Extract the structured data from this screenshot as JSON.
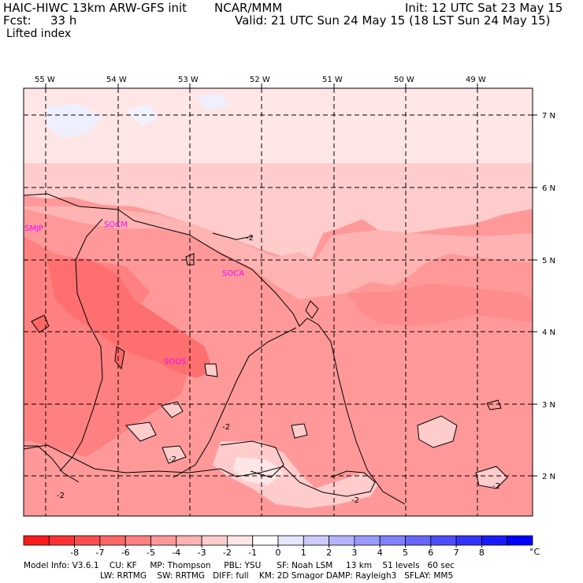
{
  "header": {
    "model_line": "HAIC-HIWC 13km ARW-GFS init",
    "org": "NCAR/MMM",
    "init": "Init: 12 UTC Sat 23 May 15",
    "fcst_label": "Fcst:",
    "fcst_value": "33 h",
    "valid": "Valid: 21 UTC Sun 24 May 15 (18 LST Sun 24 May 15)",
    "field": "Lifted index"
  },
  "map": {
    "lon_labels": [
      "55 W",
      "54 W",
      "53 W",
      "52 W",
      "51 W",
      "50 W",
      "49 W"
    ],
    "lat_labels": [
      "7 N",
      "6 N",
      "5 N",
      "4 N",
      "3 N",
      "2 N"
    ],
    "stations": [
      "SMJP",
      "SOCM",
      "SOCA",
      "SOOS"
    ],
    "contour_labels": [
      "-2",
      "-2",
      "-2",
      "-2",
      "-2",
      "-2"
    ]
  },
  "colorbar": {
    "colors": [
      "#ff1a1a",
      "#ff3333",
      "#ff4d4d",
      "#ff6666",
      "#ff8080",
      "#ff9999",
      "#ffb3b3",
      "#ffcccc",
      "#ffe6e6",
      "#ffffff",
      "#e6e6ff",
      "#ccccff",
      "#b3b3ff",
      "#9999ff",
      "#8080ff",
      "#6666ff",
      "#4d4dff",
      "#3333ff",
      "#1a1aff",
      "#0000ff"
    ],
    "ticks": [
      "-8",
      "-7",
      "-6",
      "-5",
      "-4",
      "-3",
      "-2",
      "-1",
      "0",
      "1",
      "2",
      "3",
      "4",
      "5",
      "6",
      "7",
      "8"
    ],
    "unit": "°C"
  },
  "footer": {
    "line1": "Model Info: V3.6.1    CU: KF     MP: Thompson     PBL: YSU      SF: Noah LSM     13 km    51 levels   60 sec",
    "line2": "LW: RRTMG    SW: RRTMG   DIFF: full    KM: 2D Smagor DAMP: Rayleigh3   SFLAY: MM5"
  }
}
